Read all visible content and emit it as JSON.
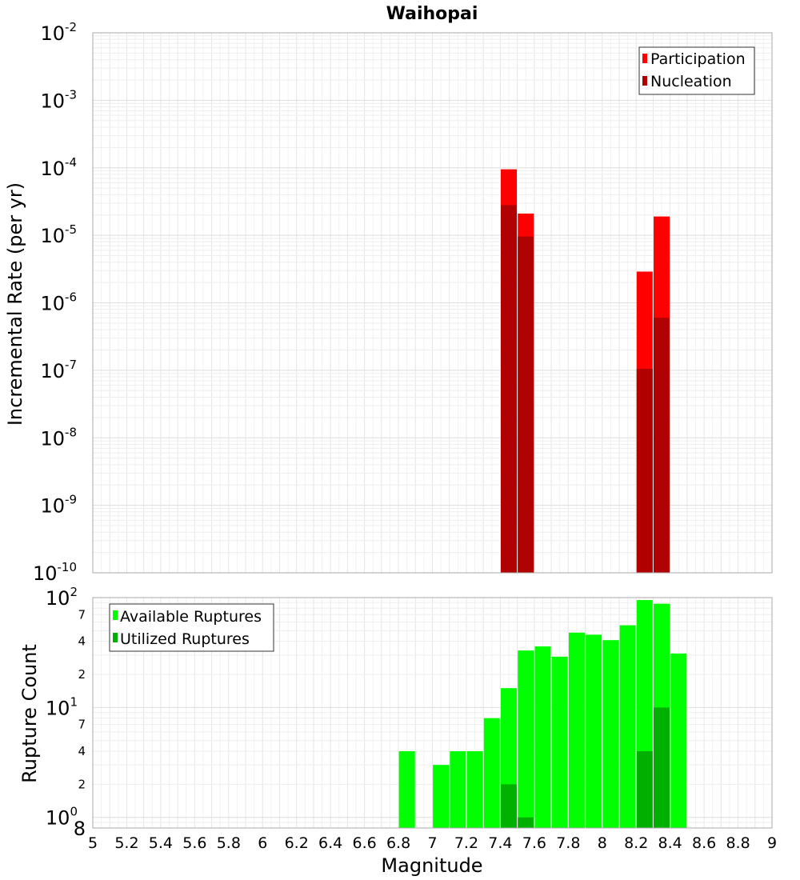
{
  "colors": {
    "participation": "#ff0000",
    "nucleation": "#b00000",
    "available": "#00ff00",
    "utilized": "#00b000",
    "grid": "#e8e8e8",
    "frame": "#aaaaaa"
  },
  "chart_data": [
    {
      "type": "bar",
      "title": "Waihopai",
      "xlabel": "",
      "ylabel": "Incremental Rate (per yr)",
      "yscale": "log",
      "ylim": [
        1e-10,
        0.01
      ],
      "xlim": [
        5,
        9
      ],
      "grid": true,
      "legend_position": "top-right",
      "ytick_labels": [
        {
          "base": "10",
          "exp": "-2",
          "v": -2
        },
        {
          "base": "10",
          "exp": "-3",
          "v": -3
        },
        {
          "base": "10",
          "exp": "-4",
          "v": -4
        },
        {
          "base": "10",
          "exp": "-5",
          "v": -5
        },
        {
          "base": "10",
          "exp": "-6",
          "v": -6
        },
        {
          "base": "10",
          "exp": "-7",
          "v": -7
        },
        {
          "base": "10",
          "exp": "-8",
          "v": -8
        },
        {
          "base": "10",
          "exp": "-9",
          "v": -9
        },
        {
          "base": "10",
          "exp": "-10",
          "v": -10
        }
      ],
      "series": [
        {
          "name": "Participation",
          "x": [
            7.45,
            7.55,
            8.25,
            8.35
          ],
          "values": [
            9.5e-05,
            2.1e-05,
            2.9e-06,
            1.9e-05
          ]
        },
        {
          "name": "Nucleation",
          "x": [
            7.45,
            7.55,
            8.25,
            8.35
          ],
          "values": [
            2.8e-05,
            9.6e-06,
            1.05e-07,
            6e-07
          ]
        }
      ]
    },
    {
      "type": "bar",
      "title": "",
      "xlabel": "Magnitude",
      "ylabel": "Rupture Count",
      "yscale": "log",
      "ylim": [
        0.8,
        100
      ],
      "xlim": [
        5,
        9
      ],
      "grid": true,
      "legend_position": "top-left",
      "xtick_labels": [
        "5",
        "5.2",
        "5.4",
        "5.6",
        "5.8",
        "6",
        "6.2",
        "6.4",
        "6.6",
        "6.8",
        "7",
        "7.2",
        "7.4",
        "7.6",
        "7.8",
        "8",
        "8.2",
        "8.4",
        "8.6",
        "8.8",
        "9"
      ],
      "ytick_labels": [
        {
          "base": "10",
          "exp": "2",
          "v": 100
        },
        {
          "base": "7",
          "exp": "",
          "v": 70
        },
        {
          "base": "4",
          "exp": "",
          "v": 40
        },
        {
          "base": "2",
          "exp": "",
          "v": 20
        },
        {
          "base": "10",
          "exp": "1",
          "v": 10
        },
        {
          "base": "7",
          "exp": "",
          "v": 7
        },
        {
          "base": "4",
          "exp": "",
          "v": 4
        },
        {
          "base": "2",
          "exp": "",
          "v": 2
        },
        {
          "base": "10",
          "exp": "0",
          "v": 1
        },
        {
          "base": "8",
          "exp": "",
          "v": 0.8
        }
      ],
      "series": [
        {
          "name": "Available Ruptures",
          "x": [
            6.85,
            7.05,
            7.15,
            7.25,
            7.35,
            7.45,
            7.55,
            7.65,
            7.75,
            7.85,
            7.95,
            8.05,
            8.15,
            8.25,
            8.35,
            8.45
          ],
          "values": [
            4,
            3,
            4,
            4,
            8,
            15,
            33,
            36,
            29,
            48,
            46,
            41,
            56,
            95,
            88,
            31
          ]
        },
        {
          "name": "Utilized Ruptures",
          "x": [
            7.45,
            7.55,
            8.25,
            8.35
          ],
          "values": [
            2,
            1,
            4,
            10
          ]
        }
      ]
    }
  ]
}
